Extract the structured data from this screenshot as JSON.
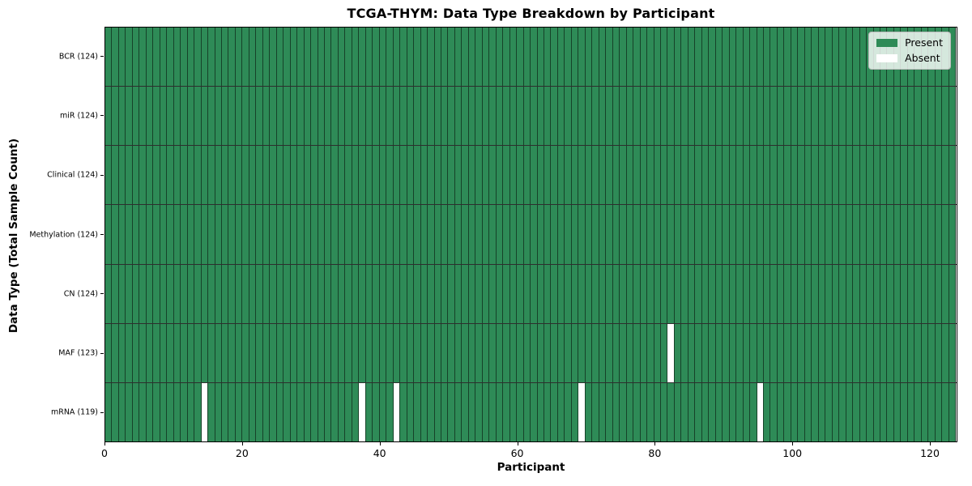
{
  "chart": {
    "title": "TCGA-THYM: Data Type Breakdown by Participant",
    "xlabel": "Participant",
    "ylabel": "Data Type (Total Sample Count)"
  },
  "chart_data": {
    "type": "heatmap",
    "title": "TCGA-THYM: Data Type Breakdown by Participant",
    "xlabel": "Participant",
    "ylabel": "Data Type (Total Sample Count)",
    "n_participants": 124,
    "x_range": [
      0,
      124
    ],
    "xticks": [
      0,
      20,
      40,
      60,
      80,
      100,
      120
    ],
    "rows": [
      {
        "label": "BCR (124)",
        "data_type": "BCR",
        "total_samples": 124,
        "absent_participants": []
      },
      {
        "label": "miR (124)",
        "data_type": "miR",
        "total_samples": 124,
        "absent_participants": []
      },
      {
        "label": "Clinical (124)",
        "data_type": "Clinical",
        "total_samples": 124,
        "absent_participants": []
      },
      {
        "label": "Methylation (124)",
        "data_type": "Methylation",
        "total_samples": 124,
        "absent_participants": []
      },
      {
        "label": "CN (124)",
        "data_type": "CN",
        "total_samples": 124,
        "absent_participants": []
      },
      {
        "label": "MAF (123)",
        "data_type": "MAF",
        "total_samples": 123,
        "absent_participants": [
          82
        ]
      },
      {
        "label": "mRNA (119)",
        "data_type": "mRNA",
        "total_samples": 119,
        "absent_participants": [
          14,
          37,
          42,
          69,
          95
        ]
      }
    ],
    "legend": [
      {
        "label": "Present",
        "color": "#2e8b57"
      },
      {
        "label": "Absent",
        "color": "#ffffff"
      }
    ],
    "legend_position": "upper right",
    "grid": false,
    "colors": {
      "present": "#2e8b57",
      "absent": "#ffffff",
      "cell_edge": "#000000",
      "spine": "#000000"
    }
  }
}
